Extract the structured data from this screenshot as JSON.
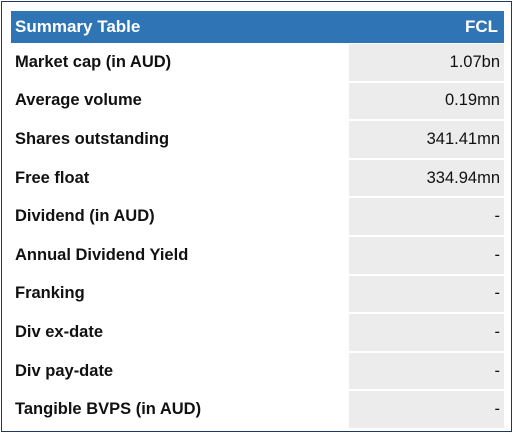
{
  "table": {
    "title": "Summary Table",
    "ticker": "FCL",
    "rows": [
      {
        "label": "Market cap (in AUD)",
        "value": "1.07bn"
      },
      {
        "label": "Average volume",
        "value": "0.19mn"
      },
      {
        "label": "Shares outstanding",
        "value": "341.41mn"
      },
      {
        "label": "Free float",
        "value": "334.94mn"
      },
      {
        "label": "Dividend (in AUD)",
        "value": "-"
      },
      {
        "label": "Annual Dividend Yield",
        "value": "-"
      },
      {
        "label": "Franking",
        "value": "-"
      },
      {
        "label": "Div ex-date",
        "value": "-"
      },
      {
        "label": "Div pay-date",
        "value": "-"
      },
      {
        "label": "Tangible BVPS (in AUD)",
        "value": "-"
      }
    ]
  },
  "colors": {
    "header_bg": "#2f75b6",
    "value_bg": "#ececec",
    "border": "#1f3864"
  }
}
